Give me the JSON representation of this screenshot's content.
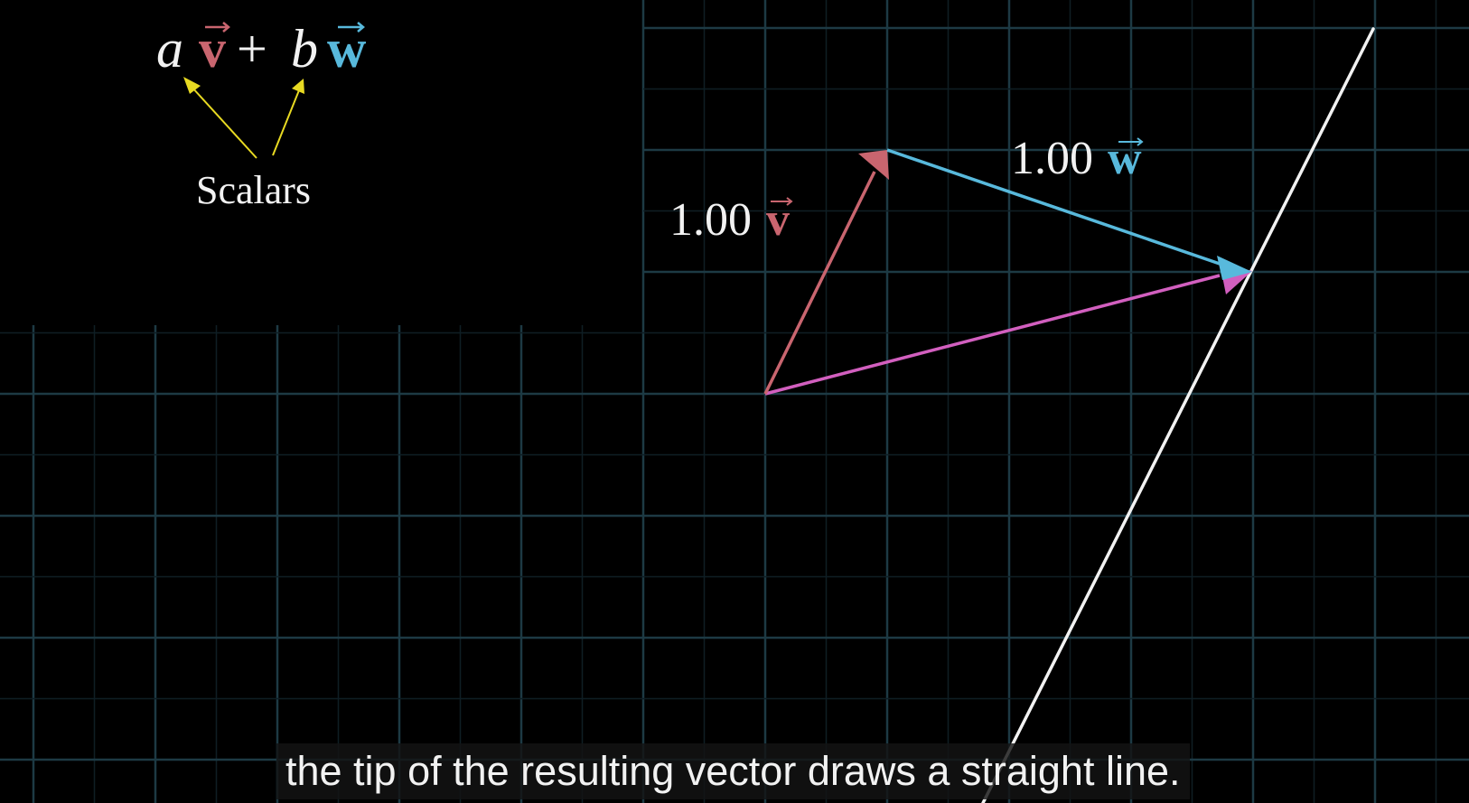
{
  "formula": {
    "a": "a",
    "v": "v",
    "plus": "+",
    "b": "b",
    "w": "w"
  },
  "scalars_label": "Scalars",
  "v_label": {
    "coef": "1.00",
    "name": "v"
  },
  "w_label": {
    "coef": "1.00",
    "name": "w"
  },
  "caption": "the tip of the resulting vector draws a straight line.",
  "colors": {
    "background": "#000000",
    "grid_major": "#1d3a44",
    "grid_minor": "#0f1e24",
    "vector_v": "#c9656f",
    "vector_w": "#58b9dc",
    "vector_sum": "#d25fbf",
    "span_line": "#f2f2f2",
    "scalar_arrows": "#e8da22",
    "text": "#f2f2f2"
  },
  "vectors": {
    "v": [
      1,
      2
    ],
    "w": [
      3,
      -1
    ],
    "sum": [
      4,
      1
    ]
  }
}
